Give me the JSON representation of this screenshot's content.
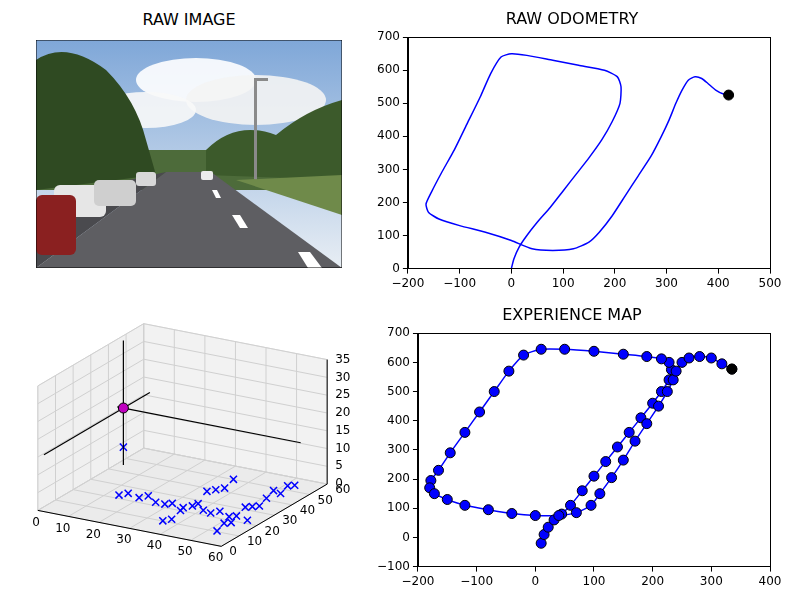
{
  "image": {
    "title": "RAW IMAGE"
  },
  "chart_data": [
    {
      "type": "line",
      "title": "RAW ODOMETRY",
      "xlim": [
        -200,
        500
      ],
      "xticks": [
        {
          "value": -200,
          "label": "−200"
        },
        {
          "value": -100,
          "label": "−100"
        },
        0,
        100,
        200,
        300,
        400,
        500
      ],
      "ylim": [
        0,
        700
      ],
      "yticks": [
        0,
        100,
        200,
        300,
        400,
        500,
        600,
        700
      ],
      "grid": false,
      "series": [
        {
          "color": "#0000ff",
          "marker": "none",
          "line_style": "solid",
          "x": [
            0,
            5,
            15,
            30,
            50,
            75,
            100,
            125,
            150,
            175,
            195,
            210,
            212,
            205,
            180,
            130,
            80,
            30,
            0,
            -20,
            -40,
            -60,
            -85,
            -110,
            -135,
            -155,
            -165,
            -160,
            -140,
            -100,
            -50,
            0,
            40,
            80,
            120,
            150,
            170,
            195,
            220,
            245,
            270,
            290,
            305,
            318,
            330,
            342,
            355,
            368,
            380,
            395,
            410,
            420
          ],
          "values": [
            0,
            30,
            65,
            100,
            140,
            185,
            235,
            285,
            335,
            390,
            445,
            500,
            550,
            580,
            600,
            615,
            630,
            645,
            650,
            640,
            590,
            520,
            440,
            360,
            290,
            230,
            195,
            170,
            150,
            130,
            110,
            85,
            60,
            55,
            60,
            80,
            110,
            160,
            220,
            280,
            340,
            400,
            450,
            500,
            540,
            570,
            580,
            575,
            560,
            540,
            528,
            525
          ]
        },
        {
          "color": "#000000",
          "marker": "o",
          "line_style": "none",
          "x": [
            420
          ],
          "values": [
            525
          ]
        }
      ]
    },
    {
      "type": "scatter3d",
      "xlim": [
        0,
        60
      ],
      "xticks": [
        0,
        10,
        20,
        30,
        40,
        50,
        60
      ],
      "ylim": [
        0,
        60
      ],
      "yticks": [
        0,
        10,
        20,
        30,
        40,
        50,
        60
      ],
      "zlim": [
        0,
        35
      ],
      "zticks": [
        0,
        5,
        10,
        15,
        20,
        25,
        30,
        35
      ],
      "grid": true,
      "series": [
        {
          "color": "#bf00bf",
          "marker": "o",
          "line_style": "none",
          "x": [
            2
          ],
          "y": [
            45
          ],
          "z": [
            16
          ]
        },
        {
          "color": "#000000",
          "marker": "none",
          "line_style": "solid",
          "x": [
            2,
            2
          ],
          "y": [
            45,
            45
          ],
          "z": [
            0,
            35
          ]
        },
        {
          "color": "#000000",
          "marker": "none",
          "line_style": "solid",
          "x": [
            0,
            60
          ],
          "y": [
            45,
            45
          ],
          "z": [
            16,
            16
          ]
        },
        {
          "color": "#000000",
          "marker": "none",
          "line_style": "solid",
          "x": [
            2,
            2
          ],
          "y": [
            0,
            60
          ],
          "z": [
            16,
            16
          ]
        },
        {
          "color": "#0000ff",
          "marker": "x",
          "line_style": "none",
          "x": [
            15,
            18,
            21,
            24,
            27,
            30,
            33,
            36,
            39,
            42,
            45,
            48,
            51,
            54,
            57,
            38,
            38,
            38,
            38,
            38,
            38,
            38,
            38,
            54,
            54,
            54,
            54,
            54,
            54,
            54,
            54,
            54,
            54,
            54,
            2
          ],
          "y": [
            20,
            20,
            21,
            21,
            20,
            20,
            19,
            20,
            20,
            21,
            20,
            20,
            20,
            19,
            20,
            5,
            10,
            15,
            25,
            30,
            35,
            40,
            45,
            8,
            12,
            16,
            24,
            28,
            32,
            36,
            40,
            44,
            48,
            52,
            45
          ],
          "z": [
            1,
            2,
            1,
            2,
            1,
            1,
            2,
            1,
            2,
            1,
            1,
            2,
            1,
            2,
            1,
            2,
            1,
            2,
            1,
            3,
            2,
            1,
            2,
            1,
            2,
            1,
            3,
            2,
            1,
            2,
            3,
            1,
            2,
            1,
            5
          ]
        }
      ]
    },
    {
      "type": "line",
      "title": "EXPERIENCE MAP",
      "xlim": [
        -200,
        400
      ],
      "xticks": [
        {
          "value": -200,
          "label": "−200"
        },
        {
          "value": -100,
          "label": "−100"
        },
        0,
        100,
        200,
        300,
        400
      ],
      "ylim": [
        -100,
        700
      ],
      "yticks": [
        {
          "value": -100,
          "label": "−100"
        },
        0,
        100,
        200,
        300,
        400,
        500,
        600,
        700
      ],
      "grid": false,
      "series": [
        {
          "color": "#0000ff",
          "marker": "o",
          "line_style": "solid",
          "x": [
            10,
            15,
            22,
            32,
            45,
            60,
            80,
            100,
            120,
            140,
            160,
            180,
            200,
            215,
            228,
            232,
            228,
            215,
            190,
            150,
            100,
            50,
            10,
            -20,
            -45,
            -70,
            -95,
            -120,
            -145,
            -165,
            -178,
            -180,
            -172,
            -150,
            -120,
            -80,
            -40,
            0,
            40,
            70,
            95,
            110,
            130,
            150,
            170,
            190,
            210,
            225,
            235,
            240,
            250,
            262,
            280,
            300,
            318,
            335
          ],
          "values": [
            -20,
            10,
            35,
            60,
            80,
            110,
            160,
            210,
            260,
            310,
            360,
            410,
            460,
            500,
            540,
            575,
            600,
            612,
            620,
            628,
            638,
            645,
            645,
            625,
            570,
            500,
            430,
            360,
            290,
            230,
            195,
            170,
            150,
            130,
            110,
            95,
            82,
            75,
            75,
            85,
            110,
            150,
            205,
            265,
            330,
            390,
            450,
            500,
            540,
            570,
            600,
            615,
            620,
            615,
            595,
            577
          ]
        },
        {
          "color": "#000000",
          "marker": "o",
          "line_style": "none",
          "x": [
            335
          ],
          "values": [
            577
          ]
        }
      ]
    }
  ]
}
